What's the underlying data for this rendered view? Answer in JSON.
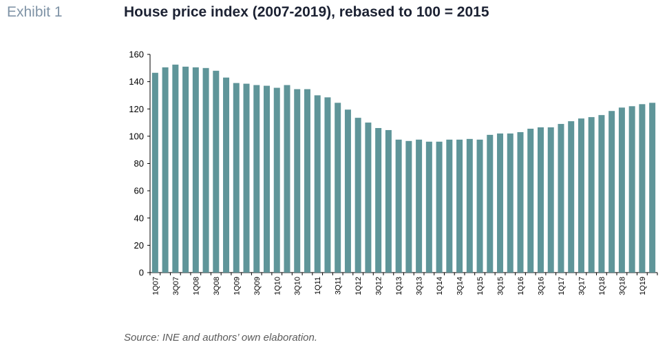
{
  "header": {
    "exhibit": "Exhibit 1",
    "title": "House price index (2007-2019), rebased to 100 = 2015"
  },
  "footer": {
    "source": "Source: INE and authors’ own elaboration."
  },
  "colors": {
    "bar": "#5f9599",
    "axis": "#000000",
    "text": "#1c2233"
  },
  "chart_data": {
    "type": "bar",
    "title": "House price index (2007-2019), rebased to 100 = 2015",
    "xlabel": "",
    "ylabel": "",
    "ylim": [
      0,
      160
    ],
    "yticks": [
      0,
      20,
      40,
      60,
      80,
      100,
      120,
      140,
      160
    ],
    "grid": false,
    "legend": "none",
    "categories": [
      "1Q07",
      "2Q07",
      "3Q07",
      "4Q07",
      "1Q08",
      "2Q08",
      "3Q08",
      "4Q08",
      "1Q09",
      "2Q09",
      "3Q09",
      "4Q09",
      "1Q10",
      "2Q10",
      "3Q10",
      "4Q10",
      "1Q11",
      "2Q11",
      "3Q11",
      "4Q11",
      "1Q12",
      "2Q12",
      "3Q12",
      "4Q12",
      "1Q13",
      "2Q13",
      "3Q13",
      "4Q13",
      "1Q14",
      "2Q14",
      "3Q14",
      "4Q14",
      "1Q15",
      "2Q15",
      "3Q15",
      "4Q15",
      "1Q16",
      "2Q16",
      "3Q16",
      "4Q16",
      "1Q17",
      "2Q17",
      "3Q17",
      "4Q17",
      "1Q18",
      "2Q18",
      "3Q18",
      "4Q18",
      "1Q19",
      "2Q19"
    ],
    "tick_labels": [
      "1Q07",
      "3Q07",
      "1Q08",
      "3Q08",
      "1Q09",
      "3Q09",
      "1Q10",
      "3Q10",
      "1Q11",
      "3Q11",
      "1Q12",
      "3Q12",
      "1Q13",
      "3Q13",
      "1Q14",
      "3Q14",
      "1Q15",
      "3Q15",
      "1Q16",
      "3Q16",
      "1Q17",
      "3Q17",
      "1Q18",
      "3Q18",
      "1Q19"
    ],
    "values": [
      146.5,
      150.5,
      152.5,
      151,
      150.5,
      150,
      148,
      143,
      139,
      138.5,
      137.5,
      137,
      135.5,
      137.5,
      134.5,
      134.5,
      130,
      128.5,
      124.5,
      119.5,
      113.5,
      110,
      106,
      104.5,
      97.5,
      96.5,
      97.5,
      96,
      96,
      97.5,
      97.5,
      98,
      97.5,
      101,
      102,
      102,
      103,
      105.5,
      106.5,
      106.5,
      109,
      111,
      113,
      114,
      115.5,
      118.5,
      121,
      122,
      123.5,
      124.5
    ]
  }
}
